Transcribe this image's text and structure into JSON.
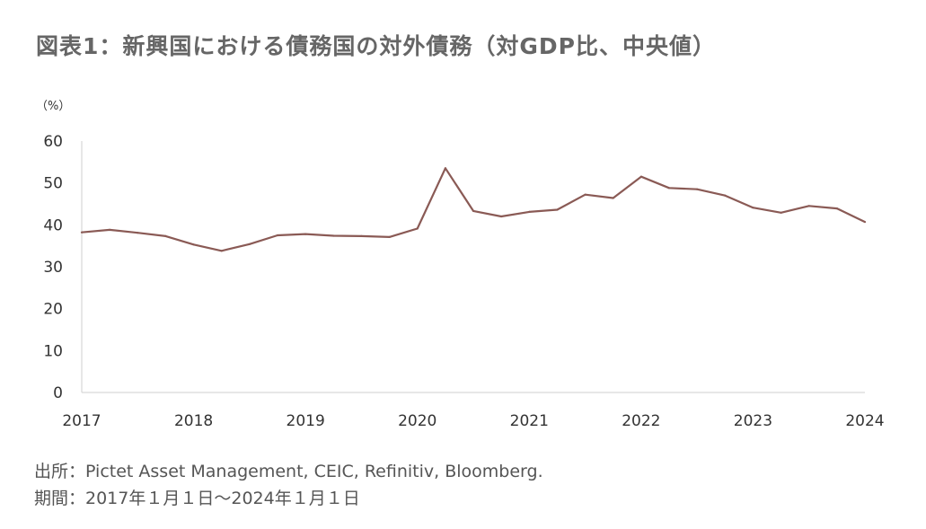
{
  "chart_data": {
    "type": "line",
    "title": "図表1：新興国における債務国の対外債務（対GDP比、中央値）",
    "unit_label": "（%）",
    "ylim": [
      0,
      60
    ],
    "y_ticks": [
      0,
      10,
      20,
      30,
      40,
      50,
      60
    ],
    "x_ticks": [
      "2017",
      "2018",
      "2019",
      "2020",
      "2021",
      "2022",
      "2023",
      "2024"
    ],
    "grid": false,
    "line_color": "#8a5a55",
    "series": [
      {
        "x": [
          "2017-01",
          "2017-04",
          "2017-07",
          "2017-10",
          "2018-01",
          "2018-04",
          "2018-07",
          "2018-10",
          "2019-01",
          "2019-04",
          "2019-07",
          "2019-10",
          "2020-01",
          "2020-04",
          "2020-07",
          "2020-10",
          "2021-01",
          "2021-04",
          "2021-07",
          "2021-10",
          "2022-01",
          "2022-04",
          "2022-07",
          "2022-10",
          "2023-01",
          "2023-04",
          "2023-07",
          "2023-10",
          "2024-01"
        ],
        "values": [
          38.2,
          38.8,
          38.1,
          37.3,
          35.3,
          33.8,
          35.4,
          37.5,
          37.8,
          37.4,
          37.3,
          37.1,
          39.1,
          53.5,
          43.3,
          42.0,
          43.1,
          43.6,
          47.2,
          46.4,
          51.5,
          48.8,
          48.5,
          47.0,
          44.1,
          42.9,
          44.5,
          43.9,
          40.7
        ]
      }
    ]
  },
  "notes": {
    "source": "出所：Pictet Asset Management, CEIC, Refinitiv, Bloomberg.",
    "period": "期間：2017年１月１日～2024年１月１日"
  }
}
